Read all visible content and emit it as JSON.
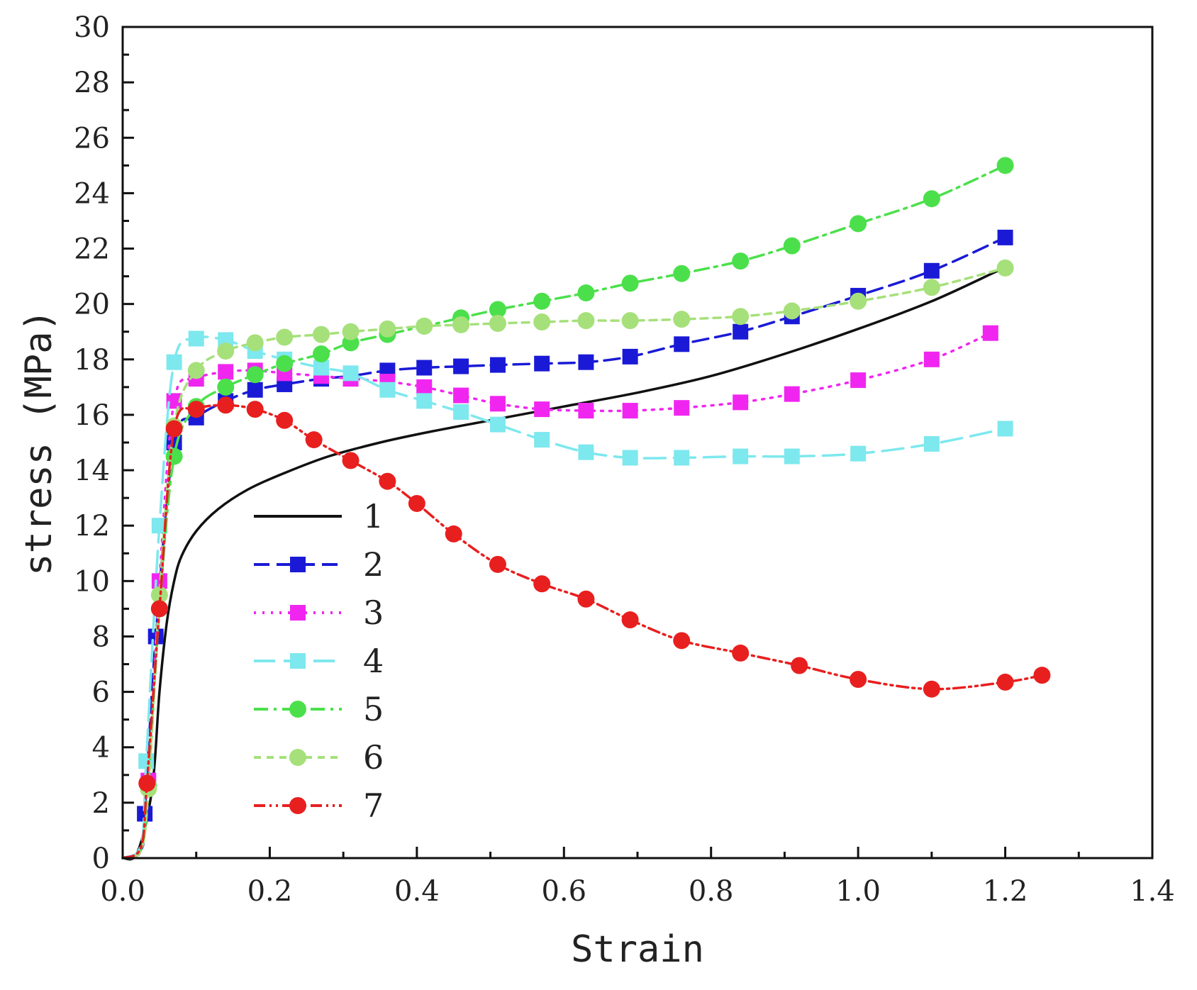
{
  "chart_data": {
    "type": "line",
    "title": "",
    "xlabel": "Strain",
    "ylabel": "stress (MPa)",
    "xlim": [
      0.0,
      1.4
    ],
    "ylim": [
      0,
      30
    ],
    "xticks": [
      0.0,
      0.2,
      0.4,
      0.6,
      0.8,
      1.0,
      1.2,
      1.4
    ],
    "xtick_labels": [
      "0.0",
      "0.2",
      "0.4",
      "0.6",
      "0.8",
      "1.0",
      "1.2",
      "1.4"
    ],
    "yticks": [
      0,
      2,
      4,
      6,
      8,
      10,
      12,
      14,
      16,
      18,
      20,
      22,
      24,
      26,
      28,
      30
    ],
    "ytick_labels": [
      "0",
      "2",
      "4",
      "6",
      "8",
      "10",
      "12",
      "14",
      "16",
      "18",
      "20",
      "22",
      "24",
      "26",
      "28",
      "30"
    ],
    "grid": false,
    "legend_position": "center-left",
    "series": [
      {
        "name": "1",
        "color": "#111111",
        "dash": "solid",
        "marker": "none",
        "points": [
          [
            0.0,
            0.0
          ],
          [
            0.02,
            0.2
          ],
          [
            0.04,
            2.5
          ],
          [
            0.05,
            6.0
          ],
          [
            0.06,
            8.5
          ],
          [
            0.07,
            10.0
          ],
          [
            0.08,
            10.9
          ],
          [
            0.1,
            11.8
          ],
          [
            0.13,
            12.6
          ],
          [
            0.17,
            13.3
          ],
          [
            0.22,
            13.9
          ],
          [
            0.28,
            14.5
          ],
          [
            0.35,
            15.0
          ],
          [
            0.42,
            15.4
          ],
          [
            0.5,
            15.8
          ],
          [
            0.6,
            16.3
          ],
          [
            0.7,
            16.8
          ],
          [
            0.8,
            17.4
          ],
          [
            0.9,
            18.2
          ],
          [
            1.0,
            19.1
          ],
          [
            1.1,
            20.1
          ],
          [
            1.19,
            21.2
          ]
        ]
      },
      {
        "name": "2",
        "color": "#1a1ad6",
        "dash": "dash",
        "marker": "square",
        "points": [
          [
            0.0,
            0.0
          ],
          [
            0.025,
            0.3
          ],
          [
            0.03,
            1.6
          ],
          [
            0.045,
            8.0
          ],
          [
            0.07,
            15.0
          ],
          [
            0.1,
            15.9
          ],
          [
            0.14,
            16.5
          ],
          [
            0.18,
            16.9
          ],
          [
            0.22,
            17.1
          ],
          [
            0.27,
            17.3
          ],
          [
            0.31,
            17.4
          ],
          [
            0.36,
            17.6
          ],
          [
            0.41,
            17.7
          ],
          [
            0.46,
            17.75
          ],
          [
            0.51,
            17.8
          ],
          [
            0.57,
            17.85
          ],
          [
            0.63,
            17.9
          ],
          [
            0.69,
            18.1
          ],
          [
            0.76,
            18.55
          ],
          [
            0.84,
            19.0
          ],
          [
            0.91,
            19.55
          ],
          [
            1.0,
            20.3
          ],
          [
            1.1,
            21.2
          ],
          [
            1.2,
            22.4
          ]
        ]
      },
      {
        "name": "3",
        "color": "#f026f0",
        "dash": "dot",
        "marker": "square",
        "points": [
          [
            0.0,
            0.0
          ],
          [
            0.025,
            0.3
          ],
          [
            0.035,
            2.8
          ],
          [
            0.05,
            10.0
          ],
          [
            0.07,
            16.5
          ],
          [
            0.1,
            17.3
          ],
          [
            0.14,
            17.55
          ],
          [
            0.18,
            17.6
          ],
          [
            0.22,
            17.5
          ],
          [
            0.27,
            17.4
          ],
          [
            0.31,
            17.3
          ],
          [
            0.36,
            17.2
          ],
          [
            0.41,
            17.0
          ],
          [
            0.46,
            16.7
          ],
          [
            0.51,
            16.4
          ],
          [
            0.57,
            16.2
          ],
          [
            0.63,
            16.15
          ],
          [
            0.69,
            16.15
          ],
          [
            0.76,
            16.25
          ],
          [
            0.84,
            16.45
          ],
          [
            0.91,
            16.75
          ],
          [
            1.0,
            17.25
          ],
          [
            1.1,
            18.0
          ],
          [
            1.18,
            18.95
          ]
        ]
      },
      {
        "name": "4",
        "color": "#7de8ee",
        "dash": "longdash",
        "marker": "square",
        "points": [
          [
            0.0,
            0.0
          ],
          [
            0.025,
            0.5
          ],
          [
            0.032,
            3.5
          ],
          [
            0.05,
            12.0
          ],
          [
            0.07,
            17.9
          ],
          [
            0.1,
            18.75
          ],
          [
            0.14,
            18.7
          ],
          [
            0.18,
            18.3
          ],
          [
            0.22,
            18.0
          ],
          [
            0.27,
            17.7
          ],
          [
            0.31,
            17.5
          ],
          [
            0.36,
            16.9
          ],
          [
            0.41,
            16.5
          ],
          [
            0.46,
            16.1
          ],
          [
            0.51,
            15.65
          ],
          [
            0.57,
            15.1
          ],
          [
            0.63,
            14.65
          ],
          [
            0.69,
            14.45
          ],
          [
            0.76,
            14.45
          ],
          [
            0.84,
            14.5
          ],
          [
            0.91,
            14.5
          ],
          [
            1.0,
            14.6
          ],
          [
            1.1,
            14.95
          ],
          [
            1.2,
            15.5
          ]
        ]
      },
      {
        "name": "5",
        "color": "#4be04b",
        "dash": "dashdot",
        "marker": "circle",
        "points": [
          [
            0.0,
            0.0
          ],
          [
            0.025,
            0.3
          ],
          [
            0.035,
            2.6
          ],
          [
            0.05,
            9.0
          ],
          [
            0.07,
            14.5
          ],
          [
            0.1,
            16.3
          ],
          [
            0.14,
            17.0
          ],
          [
            0.18,
            17.45
          ],
          [
            0.22,
            17.85
          ],
          [
            0.27,
            18.2
          ],
          [
            0.31,
            18.6
          ],
          [
            0.36,
            18.9
          ],
          [
            0.41,
            19.2
          ],
          [
            0.46,
            19.5
          ],
          [
            0.51,
            19.8
          ],
          [
            0.57,
            20.1
          ],
          [
            0.63,
            20.4
          ],
          [
            0.69,
            20.75
          ],
          [
            0.76,
            21.1
          ],
          [
            0.84,
            21.55
          ],
          [
            0.91,
            22.1
          ],
          [
            1.0,
            22.9
          ],
          [
            1.1,
            23.8
          ],
          [
            1.2,
            25.0
          ]
        ]
      },
      {
        "name": "6",
        "color": "#a6e07a",
        "dash": "shortdash",
        "marker": "circle",
        "points": [
          [
            0.0,
            0.0
          ],
          [
            0.025,
            0.3
          ],
          [
            0.035,
            2.5
          ],
          [
            0.05,
            9.5
          ],
          [
            0.07,
            15.6
          ],
          [
            0.1,
            17.6
          ],
          [
            0.14,
            18.3
          ],
          [
            0.18,
            18.6
          ],
          [
            0.22,
            18.8
          ],
          [
            0.27,
            18.9
          ],
          [
            0.31,
            19.0
          ],
          [
            0.36,
            19.1
          ],
          [
            0.41,
            19.2
          ],
          [
            0.46,
            19.25
          ],
          [
            0.51,
            19.3
          ],
          [
            0.57,
            19.35
          ],
          [
            0.63,
            19.4
          ],
          [
            0.69,
            19.4
          ],
          [
            0.76,
            19.45
          ],
          [
            0.84,
            19.55
          ],
          [
            0.91,
            19.75
          ],
          [
            1.0,
            20.1
          ],
          [
            1.1,
            20.6
          ],
          [
            1.2,
            21.3
          ]
        ]
      },
      {
        "name": "7",
        "color": "#e81f1f",
        "dash": "dashdotdot",
        "marker": "circle",
        "points": [
          [
            0.0,
            0.0
          ],
          [
            0.025,
            0.4
          ],
          [
            0.033,
            2.7
          ],
          [
            0.05,
            9.0
          ],
          [
            0.07,
            15.5
          ],
          [
            0.1,
            16.2
          ],
          [
            0.14,
            16.35
          ],
          [
            0.18,
            16.2
          ],
          [
            0.22,
            15.8
          ],
          [
            0.26,
            15.1
          ],
          [
            0.31,
            14.35
          ],
          [
            0.36,
            13.6
          ],
          [
            0.4,
            12.8
          ],
          [
            0.45,
            11.7
          ],
          [
            0.51,
            10.6
          ],
          [
            0.57,
            9.9
          ],
          [
            0.63,
            9.35
          ],
          [
            0.69,
            8.6
          ],
          [
            0.76,
            7.85
          ],
          [
            0.84,
            7.4
          ],
          [
            0.92,
            6.95
          ],
          [
            1.0,
            6.45
          ],
          [
            1.1,
            6.1
          ],
          [
            1.2,
            6.35
          ],
          [
            1.25,
            6.6
          ]
        ]
      }
    ]
  }
}
